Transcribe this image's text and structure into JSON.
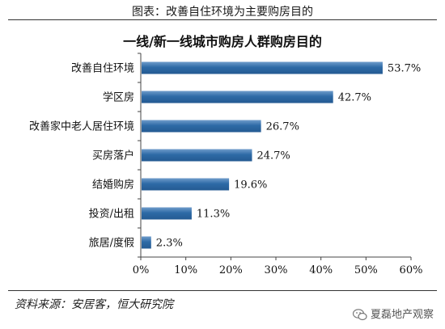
{
  "caption": "图表：改善自住环境为主要购房目的",
  "chart_data": {
    "type": "bar",
    "orientation": "horizontal",
    "title": "一线/新一线城市购房人群购房目的",
    "categories": [
      "改善自住环境",
      "学区房",
      "改善家中老人居住环境",
      "买房落户",
      "结婚购房",
      "投资/出租",
      "旅居/度假"
    ],
    "values": [
      53.7,
      42.7,
      26.7,
      24.7,
      19.6,
      11.3,
      2.3
    ],
    "value_labels": [
      "53.7%",
      "42.7%",
      "26.7%",
      "24.7%",
      "19.6%",
      "11.3%",
      "2.3%"
    ],
    "xlim": [
      0,
      60
    ],
    "xticks": [
      "0%",
      "10%",
      "20%",
      "30%",
      "40%",
      "50%",
      "60%"
    ],
    "grid": false,
    "bar_color": "#2e6aa6",
    "bar_color_light": "#6f9ccb"
  },
  "source": "资料来源：安居客，恒大研究院",
  "watermark": "夏磊地产观察"
}
